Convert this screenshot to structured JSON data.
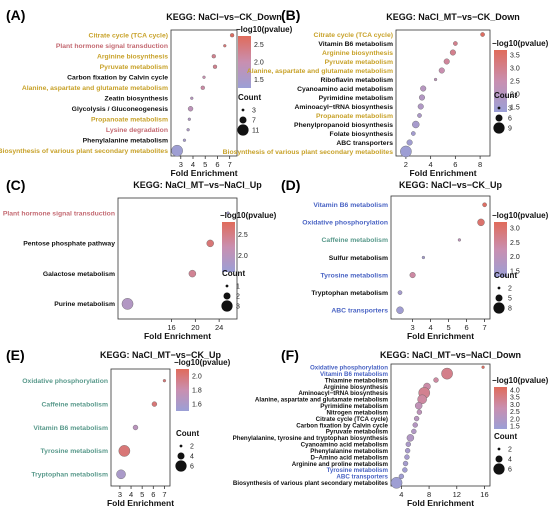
{
  "color_scale": {
    "low": "#9b9fd6",
    "mid": "#c98fb0",
    "high": "#e06b5b"
  },
  "category_colors": {
    "Metabolism": "#c8a22a",
    "Cellular": "#c46a72",
    "Genetic": "#2a6f8f",
    "Environmental": "#4a64c4",
    "Organismal": "#5a9a8c",
    "Other": "#111111"
  },
  "common": {
    "xlabel": "Fold Enrichment",
    "legend_color_title": "−log10(pvalue)",
    "legend_size_title": "Count"
  },
  "chart_data": [
    {
      "type": "scatter",
      "panel_label": "(A)",
      "title": "KEGG: NaCl−vs−CK_Down",
      "xlim": [
        2.2,
        7.6
      ],
      "xticks": [
        3,
        4,
        5,
        6,
        7
      ],
      "color_legend": {
        "min": 1.25,
        "max": 2.75,
        "ticks": [
          2.5,
          2.0,
          1.5
        ]
      },
      "size_legend": {
        "values": [
          3,
          7,
          11
        ],
        "min": 3,
        "max": 11
      },
      "points": [
        {
          "label": "Citrate cycle (TCA cycle)",
          "x": 7.2,
          "count": 4,
          "color": 2.7,
          "category": "Metabolism"
        },
        {
          "label": "Plant hormone signal transduction",
          "x": 6.6,
          "count": 3,
          "color": 2.5,
          "category": "Cellular"
        },
        {
          "label": "Arginine biosynthesis",
          "x": 5.7,
          "count": 4,
          "color": 2.3,
          "category": "Metabolism"
        },
        {
          "label": "Pyruvate metabolism",
          "x": 5.8,
          "count": 4,
          "color": 2.3,
          "category": "Metabolism"
        },
        {
          "label": "Carbon fixation by Calvin cycle",
          "x": 4.9,
          "count": 3,
          "color": 2.0,
          "category": "Other"
        },
        {
          "label": "Alanine, aspartate and glutamate metabolism",
          "x": 4.8,
          "count": 4,
          "color": 2.1,
          "category": "Metabolism"
        },
        {
          "label": "Zeatin biosynthesis",
          "x": 3.9,
          "count": 3,
          "color": 1.7,
          "category": "Other"
        },
        {
          "label": "Glycolysis / Gluconeogenesis",
          "x": 3.8,
          "count": 5,
          "color": 1.8,
          "category": "Other"
        },
        {
          "label": "Propanoate metabolism",
          "x": 3.7,
          "count": 3,
          "color": 1.6,
          "category": "Metabolism"
        },
        {
          "label": "Lysine degradation",
          "x": 3.6,
          "count": 3,
          "color": 1.55,
          "category": "Cellular"
        },
        {
          "label": "Phenylalanine metabolism",
          "x": 3.3,
          "count": 3,
          "color": 1.45,
          "category": "Other"
        },
        {
          "label": "Biosynthesis of various plant secondary metabolites",
          "x": 2.7,
          "count": 11,
          "color": 1.3,
          "category": "Metabolism"
        }
      ]
    },
    {
      "type": "scatter",
      "panel_label": "(B)",
      "title": "KEGG: NaCl_MT−vs−CK_Down",
      "xlim": [
        1.2,
        8.8
      ],
      "xticks": [
        2,
        4,
        6,
        8
      ],
      "color_legend": {
        "min": 1.3,
        "max": 3.7,
        "ticks": [
          3.5,
          3.0,
          2.5,
          2.0,
          1.5
        ]
      },
      "size_legend": {
        "values": [
          3,
          6,
          9
        ],
        "min": 3,
        "max": 9
      },
      "points": [
        {
          "label": "Citrate cycle (TCA cycle)",
          "x": 8.2,
          "count": 4,
          "color": 3.6,
          "category": "Metabolism"
        },
        {
          "label": "Vitamin B6 metabolism",
          "x": 6.0,
          "count": 4,
          "color": 3.0,
          "category": "Other"
        },
        {
          "label": "Arginine biosynthesis",
          "x": 5.8,
          "count": 5,
          "color": 3.0,
          "category": "Metabolism"
        },
        {
          "label": "Pyruvate metabolism",
          "x": 5.3,
          "count": 5,
          "color": 2.8,
          "category": "Metabolism"
        },
        {
          "label": "Alanine, aspartate and glutamate metabolism",
          "x": 4.9,
          "count": 5,
          "color": 2.5,
          "category": "Metabolism"
        },
        {
          "label": "Riboflavin metabolism",
          "x": 4.4,
          "count": 3,
          "color": 2.2,
          "category": "Other"
        },
        {
          "label": "Cyanoamino acid metabolism",
          "x": 3.4,
          "count": 5,
          "color": 2.0,
          "category": "Other"
        },
        {
          "label": "Pyrimidine metabolism",
          "x": 3.3,
          "count": 5,
          "color": 1.9,
          "category": "Other"
        },
        {
          "label": "Aminoacyl−tRNA biosynthesis",
          "x": 3.2,
          "count": 5,
          "color": 1.85,
          "category": "Other"
        },
        {
          "label": "Propanoate metabolism",
          "x": 3.1,
          "count": 4,
          "color": 1.75,
          "category": "Metabolism"
        },
        {
          "label": "Phenylpropanoid biosynthesis",
          "x": 2.8,
          "count": 6,
          "color": 1.6,
          "category": "Other"
        },
        {
          "label": "Folate biosynthesis",
          "x": 2.6,
          "count": 4,
          "color": 1.5,
          "category": "Other"
        },
        {
          "label": "ABC transporters",
          "x": 2.3,
          "count": 5,
          "color": 1.45,
          "category": "Other"
        },
        {
          "label": "Biosynthesis of various plant secondary metabolites",
          "x": 2.0,
          "count": 9,
          "color": 1.35,
          "category": "Metabolism"
        }
      ]
    },
    {
      "type": "scatter",
      "panel_label": "(C)",
      "title": "KEGG: NaCl_MT−vs−NaCl_Up",
      "xlim": [
        7,
        27
      ],
      "xticks": [
        16,
        20,
        24
      ],
      "color_legend": {
        "min": 1.6,
        "max": 2.8,
        "ticks": [
          2.5,
          2.0
        ]
      },
      "size_legend": {
        "values": [
          1,
          2,
          3
        ],
        "min": 1,
        "max": 3
      },
      "points": [
        {
          "label": "Plant hormone signal transduction",
          "x": 25.5,
          "count": 1,
          "color": 1.7,
          "category": "Cellular"
        },
        {
          "label": "Pentose phosphate pathway",
          "x": 22.5,
          "count": 2,
          "color": 2.6,
          "category": "Other"
        },
        {
          "label": "Galactose metabolism",
          "x": 19.5,
          "count": 2,
          "color": 2.4,
          "category": "Other"
        },
        {
          "label": "Purine metabolism",
          "x": 8.6,
          "count": 3,
          "color": 1.9,
          "category": "Other"
        }
      ]
    },
    {
      "type": "scatter",
      "panel_label": "(D)",
      "title": "KEGG: NaCl−vs−CK_Up",
      "xlim": [
        1.8,
        7.3
      ],
      "xticks": [
        3,
        4,
        5,
        6,
        7
      ],
      "color_legend": {
        "min": 1.3,
        "max": 3.2,
        "ticks": [
          3.0,
          2.5,
          2.0,
          1.5
        ]
      },
      "size_legend": {
        "values": [
          2,
          5,
          8
        ],
        "min": 2,
        "max": 8
      },
      "points": [
        {
          "label": "Vitamin B6 metabolism",
          "x": 7.0,
          "count": 3,
          "color": 3.1,
          "category": "Environmental"
        },
        {
          "label": "Oxidative phosphorylation",
          "x": 6.8,
          "count": 5,
          "color": 3.0,
          "category": "Environmental"
        },
        {
          "label": "Caffeine metabolism",
          "x": 5.6,
          "count": 2,
          "color": 2.0,
          "category": "Organismal"
        },
        {
          "label": "Sulfur metabolism",
          "x": 3.6,
          "count": 2,
          "color": 1.5,
          "category": "Other"
        },
        {
          "label": "Tyrosine metabolism",
          "x": 3.0,
          "count": 4,
          "color": 2.4,
          "category": "Environmental"
        },
        {
          "label": "Tryptophan metabolism",
          "x": 2.3,
          "count": 3,
          "color": 1.5,
          "category": "Other"
        },
        {
          "label": "ABC transporters",
          "x": 2.3,
          "count": 5,
          "color": 1.4,
          "category": "Environmental"
        }
      ]
    },
    {
      "type": "scatter",
      "panel_label": "(E)",
      "title": "KEGG: NaCl_MT−vs−CK_Up",
      "xlim": [
        2.2,
        7.5
      ],
      "xticks": [
        3,
        4,
        5,
        6,
        7
      ],
      "color_legend": {
        "min": 1.5,
        "max": 2.1,
        "ticks": [
          2.0,
          1.8,
          1.6
        ]
      },
      "size_legend": {
        "values": [
          2,
          4,
          6
        ],
        "min": 2,
        "max": 6
      },
      "points": [
        {
          "label": "Oxidative phosphorylation",
          "x": 7.0,
          "count": 2,
          "color": 2.0,
          "category": "Organismal"
        },
        {
          "label": "Caffeine metabolism",
          "x": 6.1,
          "count": 3,
          "color": 2.0,
          "category": "Organismal"
        },
        {
          "label": "Vitamin B6 metabolism",
          "x": 4.4,
          "count": 3,
          "color": 1.7,
          "category": "Organismal"
        },
        {
          "label": "Tyrosine metabolism",
          "x": 3.4,
          "count": 6,
          "color": 2.0,
          "category": "Organismal"
        },
        {
          "label": "Tryptophan metabolism",
          "x": 3.1,
          "count": 5,
          "color": 1.6,
          "category": "Organismal"
        }
      ]
    },
    {
      "type": "scatter",
      "panel_label": "(F)",
      "title": "KEGG: NaCl_MT−vs−NaCl_Down",
      "xlim": [
        2.5,
        16.8
      ],
      "xticks": [
        4,
        8,
        12,
        16
      ],
      "color_legend": {
        "min": 1.3,
        "max": 4.2,
        "ticks": [
          4.0,
          3.5,
          3.0,
          2.5,
          2.0,
          1.5
        ]
      },
      "size_legend": {
        "values": [
          2,
          4,
          6
        ],
        "min": 2,
        "max": 6
      },
      "points": [
        {
          "label": "Oxidative phosphorylation",
          "x": 15.8,
          "count": 2,
          "color": 4.1,
          "category": "Environmental"
        },
        {
          "label": "Vitamin B6 metabolism",
          "x": 10.6,
          "count": 6,
          "color": 3.4,
          "category": "Environmental"
        },
        {
          "label": "Thiamine metabolism",
          "x": 9.0,
          "count": 3,
          "color": 3.0,
          "category": "Other"
        },
        {
          "label": "Arginine biosynthesis",
          "x": 7.7,
          "count": 4,
          "color": 2.9,
          "category": "Other"
        },
        {
          "label": "Aminoacyl−tRNA biosynthesis",
          "x": 7.3,
          "count": 6,
          "color": 3.3,
          "category": "Other"
        },
        {
          "label": "Alanine, aspartate and glutamate metabolism",
          "x": 7.0,
          "count": 5,
          "color": 3.0,
          "category": "Other"
        },
        {
          "label": "Pyrimidine metabolism",
          "x": 6.5,
          "count": 4,
          "color": 2.5,
          "category": "Other"
        },
        {
          "label": "Nitrogen metabolism",
          "x": 6.6,
          "count": 3,
          "color": 2.4,
          "category": "Other"
        },
        {
          "label": "Citrate cycle (TCA cycle)",
          "x": 6.2,
          "count": 3,
          "color": 2.2,
          "category": "Other"
        },
        {
          "label": "Carbon fixation by Calvin cycle",
          "x": 6.0,
          "count": 3,
          "color": 2.1,
          "category": "Other"
        },
        {
          "label": "Pyruvate metabolism",
          "x": 5.8,
          "count": 3,
          "color": 2.0,
          "category": "Other"
        },
        {
          "label": "Phenylalanine, tyrosine and tryptophan biosynthesis",
          "x": 5.3,
          "count": 4,
          "color": 2.0,
          "category": "Other"
        },
        {
          "label": "Cyanoamino acid metabolism",
          "x": 5.0,
          "count": 3,
          "color": 1.8,
          "category": "Other"
        },
        {
          "label": "Phenylalanine metabolism",
          "x": 4.9,
          "count": 3,
          "color": 1.7,
          "category": "Other"
        },
        {
          "label": "D−Amino acid metabolism",
          "x": 4.8,
          "count": 3,
          "color": 1.65,
          "category": "Other"
        },
        {
          "label": "Arginine and proline metabolism",
          "x": 4.6,
          "count": 3,
          "color": 1.6,
          "category": "Other"
        },
        {
          "label": "Tyrosine metabolism",
          "x": 4.5,
          "count": 3,
          "color": 1.5,
          "category": "Environmental"
        },
        {
          "label": "ABC transporters",
          "x": 4.0,
          "count": 3,
          "color": 1.45,
          "category": "Environmental"
        },
        {
          "label": "Biosynthesis of various plant secondary metabolites",
          "x": 3.3,
          "count": 6,
          "color": 1.4,
          "category": "Other"
        }
      ]
    }
  ]
}
